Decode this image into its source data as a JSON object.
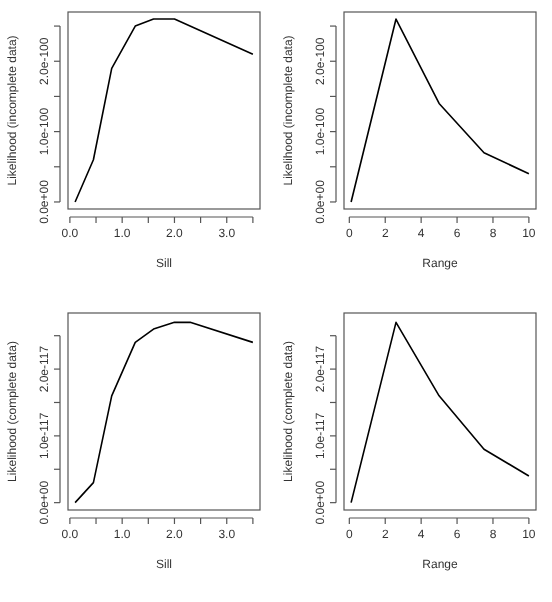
{
  "chart_data": [
    {
      "type": "line",
      "xlabel": "Sill",
      "ylabel": "Likelihood (incomplete data)",
      "x": [
        0.1,
        0.45,
        0.8,
        1.25,
        1.6,
        2.0,
        3.5
      ],
      "values": [
        0,
        6e-101,
        1.9e-100,
        2.5e-100,
        2.6e-100,
        2.6e-100,
        2.1e-100
      ],
      "color": "#000000",
      "xlim": [
        -0.036,
        3.636
      ],
      "ylim": [
        -1e-101,
        2.7e-100
      ],
      "xticks": [
        {
          "value": 0,
          "label": "0.0"
        },
        {
          "value": 0.5,
          "label": null
        },
        {
          "value": 1,
          "label": "1.0"
        },
        {
          "value": 1.5,
          "label": null
        },
        {
          "value": 2,
          "label": "2.0"
        },
        {
          "value": 2.5,
          "label": null
        },
        {
          "value": 3,
          "label": "3.0"
        },
        {
          "value": 3.5,
          "label": null
        }
      ],
      "yticks": [
        {
          "value": 0,
          "label": "0.0e+00"
        },
        {
          "value": 5e-101,
          "label": null
        },
        {
          "value": 1e-100,
          "label": "1.0e-100"
        },
        {
          "value": 1.5e-100,
          "label": null
        },
        {
          "value": 2e-100,
          "label": "2.0e-100"
        },
        {
          "value": 2.5e-100,
          "label": null
        }
      ],
      "grid": false,
      "marker": "none"
    },
    {
      "type": "line",
      "xlabel": "Range",
      "ylabel": "Likelihood (incomplete data)",
      "x": [
        0.1,
        2.6,
        5,
        7.5,
        10
      ],
      "values": [
        0,
        2.6e-100,
        1.4e-100,
        7e-101,
        4e-101
      ],
      "color": "#000000",
      "xlim": [
        -0.296,
        10.396
      ],
      "ylim": [
        -1e-101,
        2.7e-100
      ],
      "xticks": [
        0,
        2,
        4,
        6,
        8,
        10
      ],
      "yticks": [
        {
          "value": 0,
          "label": "0.0e+00"
        },
        {
          "value": 5e-101,
          "label": null
        },
        {
          "value": 1e-100,
          "label": "1.0e-100"
        },
        {
          "value": 1.5e-100,
          "label": null
        },
        {
          "value": 2e-100,
          "label": "2.0e-100"
        },
        {
          "value": 2.5e-100,
          "label": null
        }
      ],
      "grid": false,
      "marker": "none"
    },
    {
      "type": "line",
      "xlabel": "Sill",
      "ylabel": "Likelihood (complete data)",
      "x": [
        0.1,
        0.45,
        0.8,
        1.25,
        1.6,
        2.0,
        2.3,
        3.5
      ],
      "values": [
        0,
        3e-118,
        1.6e-117,
        2.4e-117,
        2.6e-117,
        2.7e-117,
        2.7e-117,
        2.4e-117
      ],
      "color": "#000000",
      "xlim": [
        -0.036,
        3.636
      ],
      "ylim": [
        -1.1e-118,
        2.84e-117
      ],
      "xticks": [
        {
          "value": 0,
          "label": "0.0"
        },
        {
          "value": 0.5,
          "label": null
        },
        {
          "value": 1,
          "label": "1.0"
        },
        {
          "value": 1.5,
          "label": null
        },
        {
          "value": 2,
          "label": "2.0"
        },
        {
          "value": 2.5,
          "label": null
        },
        {
          "value": 3,
          "label": "3.0"
        },
        {
          "value": 3.5,
          "label": null
        }
      ],
      "yticks": [
        {
          "value": 0,
          "label": "0.0e+00"
        },
        {
          "value": 5e-118,
          "label": null
        },
        {
          "value": 1e-117,
          "label": "1.0e-117"
        },
        {
          "value": 1.5e-117,
          "label": null
        },
        {
          "value": 2e-117,
          "label": "2.0e-117"
        },
        {
          "value": 2.5e-117,
          "label": null
        }
      ],
      "grid": false,
      "marker": "none"
    },
    {
      "type": "line",
      "xlabel": "Range",
      "ylabel": "Likelihood (complete data)",
      "x": [
        0.1,
        2.6,
        5,
        7.5,
        10
      ],
      "values": [
        0,
        2.7e-117,
        1.6e-117,
        8e-118,
        4e-118
      ],
      "color": "#000000",
      "xlim": [
        -0.296,
        10.396
      ],
      "ylim": [
        -1.1e-118,
        2.84e-117
      ],
      "xticks": [
        0,
        2,
        4,
        6,
        8,
        10
      ],
      "yticks": [
        {
          "value": 0,
          "label": "0.0e+00"
        },
        {
          "value": 5e-118,
          "label": null
        },
        {
          "value": 1e-117,
          "label": "1.0e-117"
        },
        {
          "value": 1.5e-117,
          "label": null
        },
        {
          "value": 2e-117,
          "label": "2.0e-117"
        },
        {
          "value": 2.5e-117,
          "label": null
        }
      ],
      "grid": false,
      "marker": "none"
    }
  ]
}
